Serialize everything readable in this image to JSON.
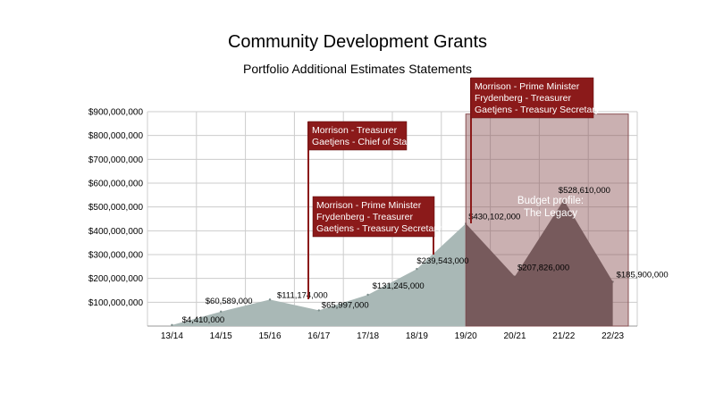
{
  "chart_data": {
    "type": "area",
    "title": "Community Development Grants",
    "subtitle": "Portfolio Additional Estimates Statements",
    "categories": [
      "13/14",
      "14/15",
      "15/16",
      "16/17",
      "17/18",
      "18/19",
      "19/20",
      "20/21",
      "21/22",
      "22/23"
    ],
    "y_tick_labels": [
      "$100,000,000",
      "$200,000,000",
      "$300,000,000",
      "$400,000,000",
      "$500,000,000",
      "$600,000,000",
      "$700,000,000",
      "$800,000,000",
      "$900,000,000"
    ],
    "ylim": [
      0,
      900000000
    ],
    "grid": true,
    "points": [
      {
        "x": "13/14",
        "y": 4410000,
        "label": "$4,410,000"
      },
      {
        "x": "14/15",
        "y": 60589000,
        "label": "$60,589,000"
      },
      {
        "x": "15/16",
        "y": 111174000,
        "label": "$111,174,000"
      },
      {
        "x": "16/17",
        "y": 65997000,
        "label": "$65,997,000"
      },
      {
        "x": "17/18",
        "y": 131245000,
        "label": "$131,245,000"
      },
      {
        "x": "18/19",
        "y": 239543000,
        "label": "$239,543,000"
      },
      {
        "x": "19/20",
        "y": 430102000,
        "label": "$430,102,000"
      },
      {
        "x": "20/21",
        "y": 207826000,
        "label": "$207,826,000"
      },
      {
        "x": "21/22",
        "y": 528610000,
        "label": "$528,610,000"
      },
      {
        "x": "22/23",
        "y": 185900000,
        "label": "$185,900,000"
      }
    ],
    "annotations": [
      {
        "lines": [
          "Morrison - Treasurer",
          "Gaetjens - Chief of Staff"
        ]
      },
      {
        "lines": [
          "Morrison - Prime Minister",
          "Frydenberg - Treasurer",
          "Gaetjens - Treasury Secretary"
        ]
      },
      {
        "lines": [
          "Morrison - Prime Minister",
          "Frydenberg - Treasurer",
          "Gaetjens - Treasury Secretary"
        ]
      }
    ],
    "budget_profile": {
      "lines": [
        "Budget profile:",
        "The Legacy"
      ]
    },
    "colors": {
      "area": "#a9b8b6",
      "annotation": "#8b1a1a",
      "budget_overlay": "#8a4f52",
      "grid": "#cccccc"
    }
  }
}
